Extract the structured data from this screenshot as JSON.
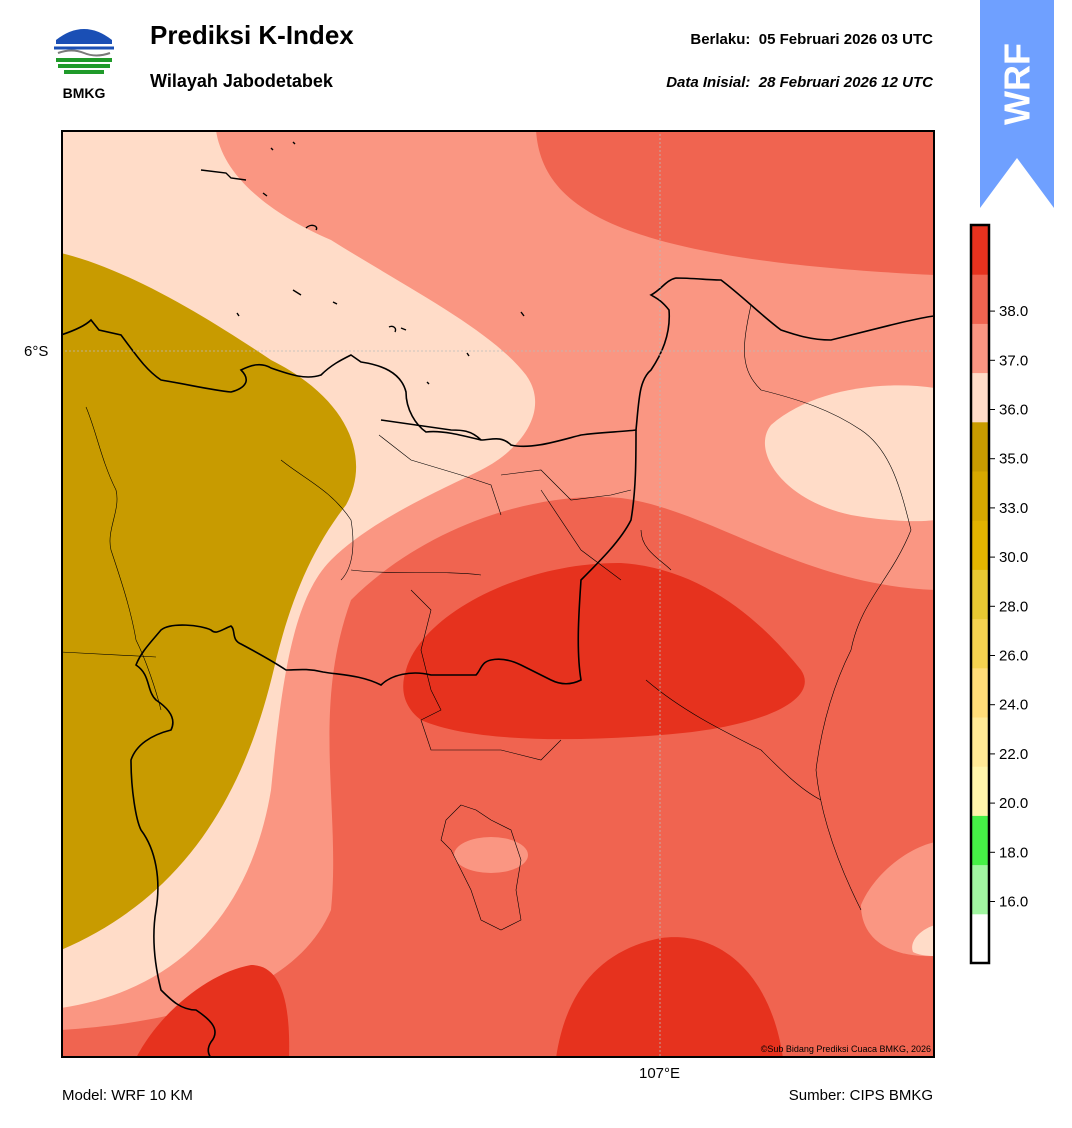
{
  "header": {
    "logo_text": "BMKG",
    "title": "Prediksi K-Index",
    "subtitle": "Wilayah Jabodetabek",
    "valid_label": "Berlaku:",
    "valid_value": "05 Februari 2026 03 UTC",
    "init_label": "Data Inisial:",
    "init_value": "28 Februari 2026 12 UTC"
  },
  "banner": {
    "text": "WRF",
    "color": "#6fa0ff"
  },
  "map": {
    "lat_label": "6°S",
    "lon_label": "107°E",
    "copyright": "©Sub Bidang Prediksi Cuaca BMKG, 2026"
  },
  "footer": {
    "model": "Model: WRF 10 KM",
    "source": "Sumber: CIPS BMKG"
  },
  "legend": {
    "colors": [
      "#ffffff",
      "#a0f5a0",
      "#46f046",
      "#fff5aa",
      "#ffe996",
      "#ffdc78",
      "#f5d250",
      "#e8c832",
      "#e2b400",
      "#d6a800",
      "#c89b00",
      "#ffdcc8",
      "#fa9682",
      "#f06450",
      "#e6321e"
    ],
    "ticks": [
      {
        "value": 16.0,
        "label": "16.0"
      },
      {
        "value": 18.0,
        "label": "18.0"
      },
      {
        "value": 20.0,
        "label": "20.0"
      },
      {
        "value": 22.0,
        "label": "22.0"
      },
      {
        "value": 24.0,
        "label": "24.0"
      },
      {
        "value": 26.0,
        "label": "26.0"
      },
      {
        "value": 28.0,
        "label": "28.0"
      },
      {
        "value": 30.0,
        "label": "30.0"
      },
      {
        "value": 33.0,
        "label": "33.0"
      },
      {
        "value": 35.0,
        "label": "35.0"
      },
      {
        "value": 36.0,
        "label": "36.0"
      },
      {
        "value": 37.0,
        "label": "37.0"
      },
      {
        "value": 38.0,
        "label": "38.0"
      }
    ]
  }
}
